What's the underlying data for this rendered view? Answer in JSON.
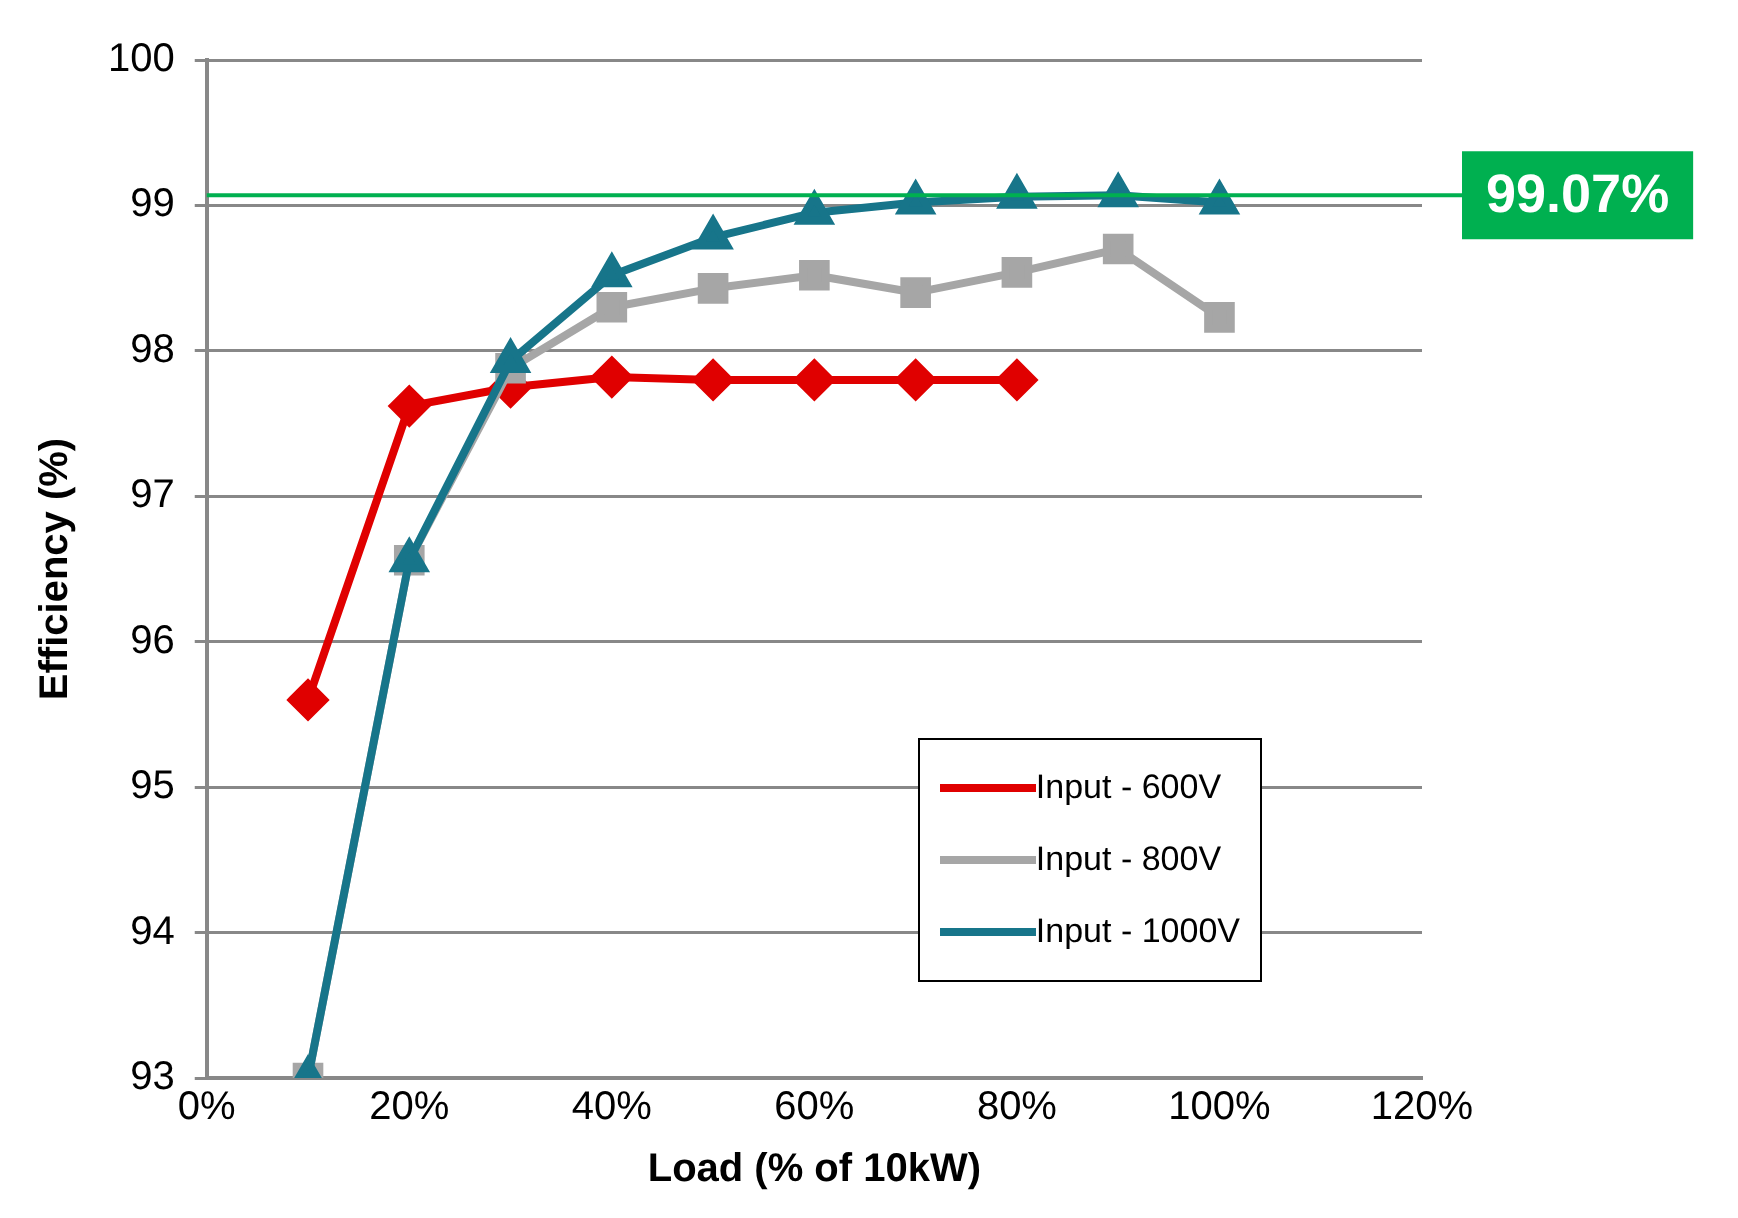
{
  "chart_data": {
    "type": "line",
    "xlabel": "Load (% of 10kW)",
    "ylabel": "Efficiency (%)",
    "x": [
      10,
      20,
      30,
      40,
      50,
      60,
      70,
      80,
      90,
      100
    ],
    "series": [
      {
        "name": "Input - 600V",
        "color": "#e00000",
        "marker": "diamond",
        "values": [
          95.6,
          97.62,
          97.75,
          97.82,
          97.8,
          97.8,
          97.8,
          97.8,
          null,
          null
        ]
      },
      {
        "name": "Input - 800V",
        "color": "#a6a6a6",
        "marker": "square",
        "values": [
          93,
          96.56,
          97.88,
          98.3,
          98.43,
          98.52,
          98.4,
          98.54,
          98.7,
          98.23
        ]
      },
      {
        "name": "Input - 1000V",
        "color": "#17758a",
        "marker": "triangle",
        "values": [
          93,
          96.56,
          97.93,
          98.52,
          98.78,
          98.95,
          99.02,
          99.06,
          99.07,
          99.02
        ]
      }
    ],
    "xlim": [
      0,
      120
    ],
    "xticks": [
      {
        "value": 0,
        "label": "0%"
      },
      {
        "value": 20,
        "label": "20%"
      },
      {
        "value": 40,
        "label": "40%"
      },
      {
        "value": 60,
        "label": "60%"
      },
      {
        "value": 80,
        "label": "80%"
      },
      {
        "value": 100,
        "label": "100%"
      },
      {
        "value": 120,
        "label": "120%"
      }
    ],
    "ylim": [
      93,
      100
    ],
    "yticks": [
      93,
      94,
      95,
      96,
      97,
      98,
      99,
      100
    ],
    "ref_lines": [
      {
        "axis": "y",
        "value": 99.07,
        "label": "99.07%",
        "color": "#00b050"
      }
    ],
    "grid": "y",
    "legend": "bottom right",
    "line_style": "solid"
  }
}
